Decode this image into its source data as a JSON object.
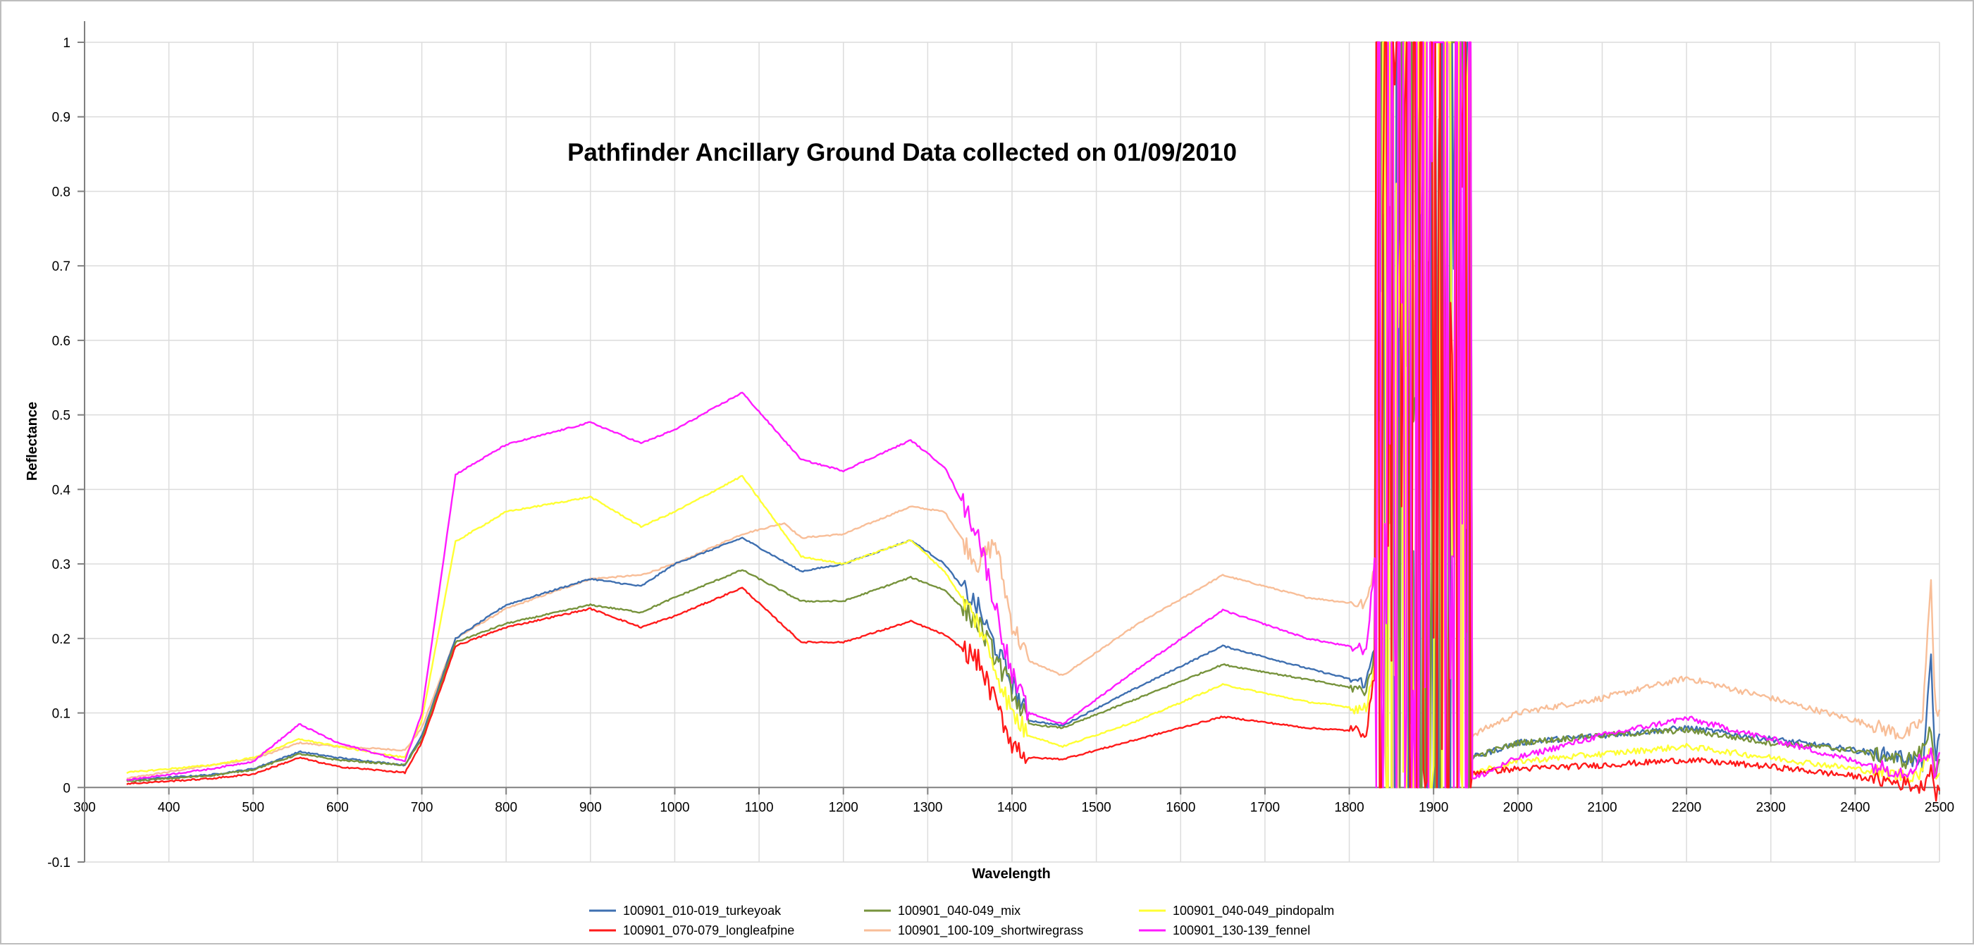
{
  "chart_data": {
    "type": "line",
    "title": "Pathfinder Ancillary Ground Data collected on 01/09/2010",
    "xlabel": "Wavelength",
    "ylabel": "Reflectance",
    "xlim": [
      300,
      2500
    ],
    "ylim": [
      -0.1,
      1
    ],
    "x_ticks": [
      "300",
      "400",
      "500",
      "600",
      "700",
      "800",
      "900",
      "1000",
      "1100",
      "1200",
      "1300",
      "1400",
      "1500",
      "1600",
      "1700",
      "1800",
      "1900",
      "2000",
      "2100",
      "2200",
      "2300",
      "2400",
      "2500"
    ],
    "y_ticks": [
      "-0.1",
      "0",
      "0.1",
      "0.2",
      "0.3",
      "0.4",
      "0.5",
      "0.6",
      "0.7",
      "0.8",
      "0.9",
      "1"
    ],
    "grid": true,
    "legend_position": "bottom",
    "series": [
      {
        "name": "100901_010-019_turkeyoak",
        "color": "#3e6fb0",
        "points": [
          [
            350,
            0.01
          ],
          [
            450,
            0.017
          ],
          [
            500,
            0.025
          ],
          [
            555,
            0.048
          ],
          [
            600,
            0.04
          ],
          [
            680,
            0.03
          ],
          [
            700,
            0.07
          ],
          [
            740,
            0.2
          ],
          [
            800,
            0.245
          ],
          [
            900,
            0.28
          ],
          [
            960,
            0.27
          ],
          [
            1000,
            0.3
          ],
          [
            1080,
            0.335
          ],
          [
            1150,
            0.29
          ],
          [
            1200,
            0.3
          ],
          [
            1280,
            0.332
          ],
          [
            1320,
            0.3
          ],
          [
            1360,
            0.24
          ],
          [
            1400,
            0.14
          ],
          [
            1420,
            0.09
          ],
          [
            1460,
            0.083
          ],
          [
            1550,
            0.135
          ],
          [
            1650,
            0.19
          ],
          [
            1750,
            0.16
          ],
          [
            1820,
            0.14
          ],
          [
            1830,
            0.19
          ],
          [
            1835,
            0.16
          ],
          [
            1945,
            0.04
          ],
          [
            2000,
            0.06
          ],
          [
            2100,
            0.07
          ],
          [
            2200,
            0.08
          ],
          [
            2300,
            0.065
          ],
          [
            2400,
            0.05
          ],
          [
            2460,
            0.04
          ],
          [
            2480,
            0.03
          ],
          [
            2490,
            0.17
          ],
          [
            2495,
            0.03
          ],
          [
            2500,
            0.08
          ]
        ]
      },
      {
        "name": "100901_040-049_mix",
        "color": "#77933c",
        "points": [
          [
            350,
            0.008
          ],
          [
            450,
            0.016
          ],
          [
            500,
            0.024
          ],
          [
            555,
            0.045
          ],
          [
            600,
            0.037
          ],
          [
            680,
            0.03
          ],
          [
            700,
            0.065
          ],
          [
            740,
            0.195
          ],
          [
            800,
            0.22
          ],
          [
            900,
            0.245
          ],
          [
            960,
            0.235
          ],
          [
            1000,
            0.255
          ],
          [
            1080,
            0.292
          ],
          [
            1150,
            0.25
          ],
          [
            1200,
            0.25
          ],
          [
            1280,
            0.282
          ],
          [
            1320,
            0.265
          ],
          [
            1360,
            0.22
          ],
          [
            1400,
            0.13
          ],
          [
            1420,
            0.085
          ],
          [
            1460,
            0.08
          ],
          [
            1550,
            0.12
          ],
          [
            1650,
            0.165
          ],
          [
            1750,
            0.145
          ],
          [
            1820,
            0.13
          ],
          [
            1830,
            0.18
          ],
          [
            1835,
            0.15
          ],
          [
            1945,
            0.04
          ],
          [
            2000,
            0.06
          ],
          [
            2100,
            0.07
          ],
          [
            2200,
            0.077
          ],
          [
            2300,
            0.06
          ],
          [
            2400,
            0.05
          ],
          [
            2460,
            0.035
          ],
          [
            2480,
            0.05
          ],
          [
            2490,
            0.08
          ],
          [
            2495,
            0.02
          ],
          [
            2500,
            0.04
          ]
        ]
      },
      {
        "name": "100901_040-049_pindopalm",
        "color": "#ffff33",
        "points": [
          [
            350,
            0.02
          ],
          [
            450,
            0.03
          ],
          [
            500,
            0.04
          ],
          [
            555,
            0.065
          ],
          [
            600,
            0.055
          ],
          [
            680,
            0.04
          ],
          [
            700,
            0.09
          ],
          [
            740,
            0.33
          ],
          [
            800,
            0.37
          ],
          [
            900,
            0.39
          ],
          [
            960,
            0.35
          ],
          [
            1000,
            0.37
          ],
          [
            1080,
            0.418
          ],
          [
            1150,
            0.31
          ],
          [
            1200,
            0.3
          ],
          [
            1280,
            0.332
          ],
          [
            1320,
            0.29
          ],
          [
            1360,
            0.22
          ],
          [
            1400,
            0.1
          ],
          [
            1420,
            0.07
          ],
          [
            1460,
            0.055
          ],
          [
            1550,
            0.09
          ],
          [
            1650,
            0.138
          ],
          [
            1750,
            0.115
          ],
          [
            1820,
            0.105
          ],
          [
            1830,
            0.17
          ],
          [
            1835,
            0.12
          ],
          [
            1945,
            0.02
          ],
          [
            2000,
            0.035
          ],
          [
            2100,
            0.045
          ],
          [
            2200,
            0.055
          ],
          [
            2300,
            0.04
          ],
          [
            2400,
            0.025
          ],
          [
            2460,
            0.015
          ],
          [
            2480,
            0.02
          ],
          [
            2490,
            0.06
          ],
          [
            2495,
            0.01
          ],
          [
            2500,
            0.02
          ]
        ]
      },
      {
        "name": "100901_070-079_longleafpine",
        "color": "#ff1a1a",
        "points": [
          [
            350,
            0.005
          ],
          [
            450,
            0.012
          ],
          [
            500,
            0.018
          ],
          [
            555,
            0.04
          ],
          [
            600,
            0.028
          ],
          [
            680,
            0.02
          ],
          [
            700,
            0.06
          ],
          [
            740,
            0.19
          ],
          [
            800,
            0.215
          ],
          [
            900,
            0.24
          ],
          [
            960,
            0.215
          ],
          [
            1000,
            0.23
          ],
          [
            1080,
            0.268
          ],
          [
            1150,
            0.195
          ],
          [
            1200,
            0.195
          ],
          [
            1280,
            0.223
          ],
          [
            1320,
            0.205
          ],
          [
            1360,
            0.17
          ],
          [
            1400,
            0.06
          ],
          [
            1420,
            0.04
          ],
          [
            1460,
            0.038
          ],
          [
            1550,
            0.065
          ],
          [
            1650,
            0.095
          ],
          [
            1750,
            0.08
          ],
          [
            1820,
            0.075
          ],
          [
            1830,
            0.15
          ],
          [
            1835,
            0.09
          ],
          [
            1945,
            0.02
          ],
          [
            2000,
            0.025
          ],
          [
            2100,
            0.03
          ],
          [
            2200,
            0.037
          ],
          [
            2300,
            0.028
          ],
          [
            2400,
            0.015
          ],
          [
            2460,
            0.005
          ],
          [
            2480,
            0.0
          ],
          [
            2490,
            0.03
          ],
          [
            2495,
            -0.01
          ],
          [
            2500,
            0.0
          ]
        ]
      },
      {
        "name": "100901_100-109_shortwiregrass",
        "color": "#f8be98",
        "points": [
          [
            350,
            0.012
          ],
          [
            450,
            0.03
          ],
          [
            500,
            0.038
          ],
          [
            555,
            0.06
          ],
          [
            600,
            0.055
          ],
          [
            680,
            0.05
          ],
          [
            700,
            0.08
          ],
          [
            740,
            0.2
          ],
          [
            800,
            0.24
          ],
          [
            900,
            0.28
          ],
          [
            960,
            0.285
          ],
          [
            1000,
            0.3
          ],
          [
            1080,
            0.34
          ],
          [
            1130,
            0.355
          ],
          [
            1150,
            0.335
          ],
          [
            1200,
            0.34
          ],
          [
            1280,
            0.377
          ],
          [
            1320,
            0.37
          ],
          [
            1360,
            0.3
          ],
          [
            1380,
            0.33
          ],
          [
            1400,
            0.22
          ],
          [
            1420,
            0.17
          ],
          [
            1460,
            0.15
          ],
          [
            1550,
            0.22
          ],
          [
            1650,
            0.285
          ],
          [
            1750,
            0.255
          ],
          [
            1820,
            0.245
          ],
          [
            1830,
            0.3
          ],
          [
            1835,
            0.26
          ],
          [
            1945,
            0.07
          ],
          [
            2000,
            0.1
          ],
          [
            2100,
            0.12
          ],
          [
            2200,
            0.147
          ],
          [
            2300,
            0.12
          ],
          [
            2400,
            0.09
          ],
          [
            2460,
            0.07
          ],
          [
            2480,
            0.09
          ],
          [
            2490,
            0.285
          ],
          [
            2495,
            0.1
          ],
          [
            2500,
            0.1
          ]
        ]
      },
      {
        "name": "100901_130-139_fennel",
        "color": "#ff1aff",
        "points": [
          [
            350,
            0.01
          ],
          [
            450,
            0.025
          ],
          [
            500,
            0.035
          ],
          [
            555,
            0.085
          ],
          [
            600,
            0.06
          ],
          [
            680,
            0.035
          ],
          [
            700,
            0.1
          ],
          [
            740,
            0.42
          ],
          [
            800,
            0.46
          ],
          [
            900,
            0.49
          ],
          [
            960,
            0.462
          ],
          [
            1000,
            0.48
          ],
          [
            1080,
            0.53
          ],
          [
            1150,
            0.44
          ],
          [
            1200,
            0.425
          ],
          [
            1280,
            0.466
          ],
          [
            1320,
            0.43
          ],
          [
            1360,
            0.34
          ],
          [
            1400,
            0.15
          ],
          [
            1420,
            0.1
          ],
          [
            1460,
            0.085
          ],
          [
            1550,
            0.16
          ],
          [
            1650,
            0.238
          ],
          [
            1750,
            0.2
          ],
          [
            1820,
            0.185
          ],
          [
            1830,
            0.3
          ],
          [
            1835,
            0.2
          ],
          [
            1945,
            0.01
          ],
          [
            2000,
            0.04
          ],
          [
            2100,
            0.07
          ],
          [
            2200,
            0.093
          ],
          [
            2300,
            0.065
          ],
          [
            2400,
            0.035
          ],
          [
            2460,
            0.02
          ],
          [
            2480,
            0.04
          ],
          [
            2490,
            0.05
          ],
          [
            2495,
            0.01
          ],
          [
            2500,
            0.055
          ]
        ]
      }
    ]
  }
}
